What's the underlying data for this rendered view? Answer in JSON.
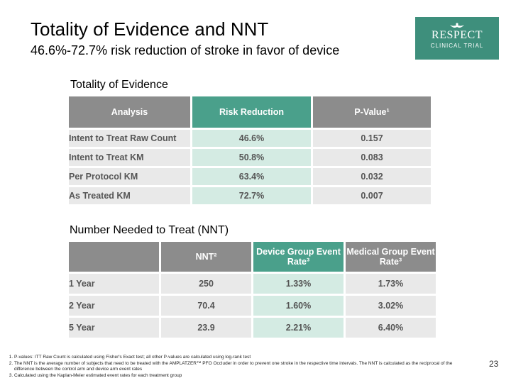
{
  "header": {
    "title": "Totality of Evidence and NNT",
    "subtitle": "46.6%-72.7% risk reduction of stroke in favor of device"
  },
  "logo": {
    "word": "RESPECT",
    "sub": "CLINICAL TRIAL",
    "bg_color": "#3e8f7c"
  },
  "totality": {
    "section_title": "Totality of Evidence",
    "headers": [
      "Analysis",
      "Risk Reduction",
      "P-Value¹"
    ],
    "rows": [
      [
        "Intent to Treat Raw Count",
        "46.6%",
        "0.157"
      ],
      [
        "Intent to Treat KM",
        "50.8%",
        "0.083"
      ],
      [
        "Per Protocol KM",
        "63.4%",
        "0.032"
      ],
      [
        "As Treated KM",
        "72.7%",
        "0.007"
      ]
    ]
  },
  "nnt": {
    "section_title": "Number Needed to Treat (NNT)",
    "headers": [
      "",
      "NNT²",
      "Device Group Event Rate³",
      "Medical Group Event Rate³"
    ],
    "rows": [
      [
        "1 Year",
        "250",
        "1.33%",
        "1.73%"
      ],
      [
        "2 Year",
        "70.4",
        "1.60%",
        "3.02%"
      ],
      [
        "5 Year",
        "23.9",
        "2.21%",
        "6.40%"
      ]
    ]
  },
  "footnotes": [
    "P-values: ITT Raw Count is calculated using Fisher's Exact test; all other P-values are calculated using log-rank test",
    "The NNT is the average number of subjects that need to be treated with the AMPLATZER™ PFO Occluder in order to prevent one stroke in the respective time intervals. The NNT is calculated as the reciprocal of the difference between the control arm and device arm event rates",
    "Calculated using the Kaplan-Meier estimated event rates for each treatment group"
  ],
  "page_number": "23",
  "colors": {
    "header_gray": "#8c8c8c",
    "header_green": "#4aa08b",
    "cell_gray": "#e9e9e9",
    "cell_green": "#d4ebe3"
  }
}
